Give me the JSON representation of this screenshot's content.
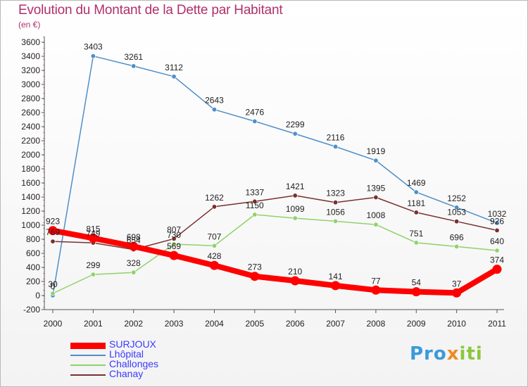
{
  "title": "Evolution du Montant de la Dette par Habitant",
  "subtitle": "(en €)",
  "brand": {
    "part1": "Pro",
    "part2": "x",
    "part3": "iti"
  },
  "chart_data": {
    "type": "line",
    "title": "Evolution du Montant de la Dette par Habitant",
    "subtitle": "(en €)",
    "categories": [
      "2000",
      "2001",
      "2002",
      "2003",
      "2004",
      "2005",
      "2006",
      "2007",
      "2008",
      "2009",
      "2010",
      "2011"
    ],
    "y_ticks": [
      -200,
      0,
      200,
      400,
      600,
      800,
      1000,
      1200,
      1400,
      1600,
      1800,
      2000,
      2200,
      2400,
      2600,
      2800,
      3000,
      3200,
      3400,
      3600
    ],
    "ylim": [
      -200,
      3600
    ],
    "grid": false,
    "legend_position": "bottom-left",
    "series": [
      {
        "name": "SURJOUX",
        "color": "#ff0000",
        "values": [
          923,
          815,
          698,
          569,
          428,
          273,
          210,
          141,
          77,
          54,
          37,
          374
        ]
      },
      {
        "name": "Lhôpital",
        "color": "#4f8fc8",
        "values": [
          0,
          3403,
          3261,
          3112,
          2643,
          2476,
          2299,
          2116,
          1919,
          1469,
          1252,
          1032
        ]
      },
      {
        "name": "Challonges",
        "color": "#8fd26b",
        "values": [
          30,
          299,
          328,
          730,
          707,
          1150,
          1099,
          1056,
          1008,
          751,
          696,
          640
        ]
      },
      {
        "name": "Chanay",
        "color": "#7a2f2f",
        "values": [
          769,
          749,
          654,
          807,
          1262,
          1337,
          1421,
          1323,
          1395,
          1181,
          1053,
          926
        ]
      }
    ]
  }
}
